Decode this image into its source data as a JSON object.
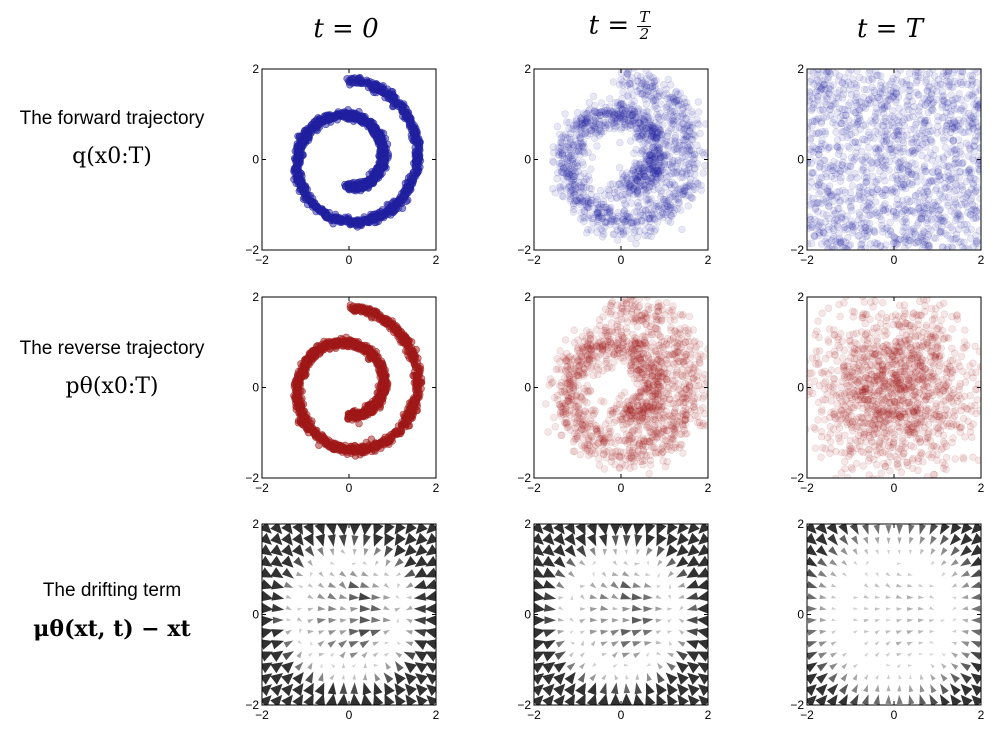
{
  "columns": [
    {
      "prefix": "t = ",
      "value": "0"
    },
    {
      "prefix": "t = ",
      "frac_num": "T",
      "frac_den": "2"
    },
    {
      "prefix": "t = ",
      "value": "T"
    }
  ],
  "rows": [
    {
      "label": "The forward trajectory",
      "math": "q(x0:T)"
    },
    {
      "label": "The reverse trajectory",
      "math": "pθ(x0:T)"
    },
    {
      "label": "The drifting term",
      "math": "μθ(xt, t) − xt"
    }
  ],
  "colors": {
    "forward": "#1f1fa0",
    "reverse": "#a01818",
    "arrow": "#262626"
  },
  "chart_data": [
    {
      "type": "scatter",
      "row": 0,
      "col": 0,
      "name_key": "forward",
      "distribution": "swiss-roll",
      "noise": 0.05,
      "alpha": 0.5,
      "n_points": 1400,
      "xlim": [
        -2,
        2
      ],
      "ylim": [
        -2,
        2
      ],
      "xticks": [
        -2,
        0,
        2
      ],
      "yticks": [
        -2,
        0,
        2
      ]
    },
    {
      "type": "scatter",
      "row": 0,
      "col": 1,
      "name_key": "forward",
      "distribution": "swiss-roll",
      "noise": 0.22,
      "alpha": 0.1,
      "n_points": 1400,
      "xlim": [
        -2,
        2
      ],
      "ylim": [
        -2,
        2
      ],
      "xticks": [
        -2,
        0,
        2
      ],
      "yticks": [
        -2,
        0,
        2
      ]
    },
    {
      "type": "scatter",
      "row": 0,
      "col": 2,
      "name_key": "forward",
      "distribution": "uniform-noise",
      "alpha": 0.1,
      "n_points": 1400,
      "xlim": [
        -2,
        2
      ],
      "ylim": [
        -2,
        2
      ],
      "xticks": [
        -2,
        0,
        2
      ],
      "yticks": [
        -2,
        0,
        2
      ]
    },
    {
      "type": "scatter",
      "row": 1,
      "col": 0,
      "name_key": "reverse",
      "distribution": "swiss-roll",
      "noise": 0.05,
      "alpha": 0.5,
      "n_points": 1400,
      "xlim": [
        -2,
        2
      ],
      "ylim": [
        -2,
        2
      ],
      "xticks": [
        -2,
        0,
        2
      ],
      "yticks": [
        -2,
        0,
        2
      ]
    },
    {
      "type": "scatter",
      "row": 1,
      "col": 1,
      "name_key": "reverse",
      "distribution": "swiss-roll",
      "noise": 0.25,
      "alpha": 0.1,
      "n_points": 1400,
      "xlim": [
        -2,
        2
      ],
      "ylim": [
        -2,
        2
      ],
      "xticks": [
        -2,
        0,
        2
      ],
      "yticks": [
        -2,
        0,
        2
      ]
    },
    {
      "type": "scatter",
      "row": 1,
      "col": 2,
      "name_key": "reverse",
      "distribution": "gaussian-noise",
      "alpha": 0.1,
      "n_points": 1400,
      "xlim": [
        -2,
        2
      ],
      "ylim": [
        -2,
        2
      ],
      "xticks": [
        -2,
        0,
        2
      ],
      "yticks": [
        -2,
        0,
        2
      ]
    },
    {
      "type": "quiver",
      "row": 2,
      "col": 0,
      "name_key": "arrow",
      "grid": 16,
      "strength": 1.0,
      "xlim": [
        -2,
        2
      ],
      "ylim": [
        -2,
        2
      ],
      "xticks": [
        -2,
        0,
        2
      ],
      "yticks": [
        -2,
        0,
        2
      ]
    },
    {
      "type": "quiver",
      "row": 2,
      "col": 1,
      "name_key": "arrow",
      "grid": 16,
      "strength": 0.9,
      "xlim": [
        -2,
        2
      ],
      "ylim": [
        -2,
        2
      ],
      "xticks": [
        -2,
        0,
        2
      ],
      "yticks": [
        -2,
        0,
        2
      ]
    },
    {
      "type": "quiver",
      "row": 2,
      "col": 2,
      "name_key": "arrow",
      "grid": 16,
      "strength": 0.35,
      "xlim": [
        -2,
        2
      ],
      "ylim": [
        -2,
        2
      ],
      "xticks": [
        -2,
        0,
        2
      ],
      "yticks": [
        -2,
        0,
        2
      ]
    }
  ]
}
